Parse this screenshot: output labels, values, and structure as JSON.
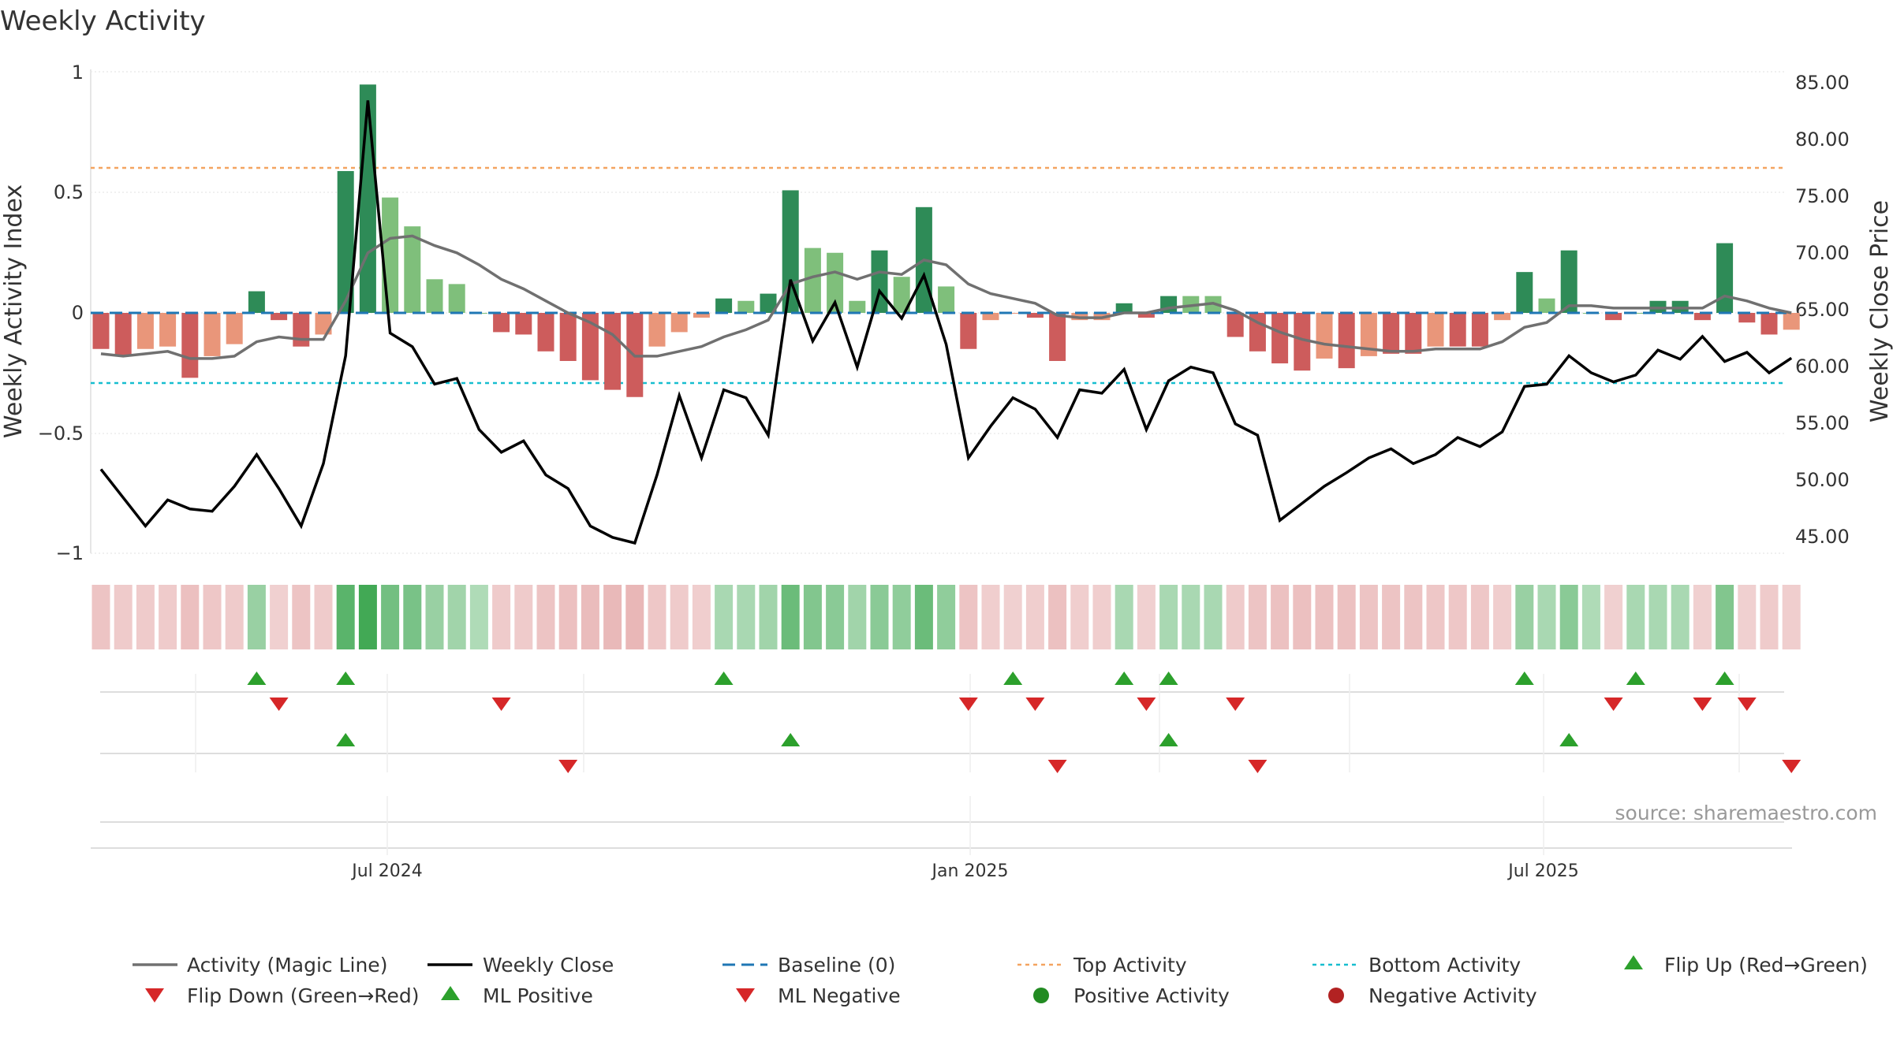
{
  "chart_data": {
    "type": "bar",
    "title": "Weekly Activity",
    "ylabel": "Weekly Activity Index",
    "y2label": "Weekly Close Price",
    "ylim": [
      -1,
      1
    ],
    "y2lim": [
      43,
      86
    ],
    "yticks": [
      "1",
      "0.5",
      "0",
      "−0.5",
      "−1"
    ],
    "y2ticks": [
      "85.00",
      "80.00",
      "75.00",
      "70.00",
      "65.00",
      "60.00",
      "55.00",
      "50.00",
      "45.00"
    ],
    "xticks": [
      "Jul 2024",
      "Jan 2025",
      "Jul 2025"
    ],
    "source": "source: sharemaestro.com",
    "top_activity": 0.6,
    "bottom_activity": -0.29,
    "baseline": 0,
    "activity": [
      -0.15,
      -0.18,
      -0.15,
      -0.14,
      -0.27,
      -0.18,
      -0.13,
      0.09,
      -0.03,
      -0.14,
      -0.09,
      0.59,
      0.95,
      0.48,
      0.36,
      0.14,
      0.12,
      0,
      -0.08,
      -0.09,
      -0.16,
      -0.2,
      -0.28,
      -0.32,
      -0.35,
      -0.14,
      -0.08,
      -0.02,
      0.06,
      0.05,
      0.08,
      0.51,
      0.27,
      0.25,
      0.05,
      0.26,
      0.15,
      0.44,
      0.11,
      -0.15,
      -0.03,
      0,
      -0.02,
      -0.2,
      -0.03,
      -0.03,
      0.04,
      -0.02,
      0.07,
      0.07,
      0.07,
      -0.1,
      -0.16,
      -0.21,
      -0.24,
      -0.19,
      -0.23,
      -0.18,
      -0.17,
      -0.17,
      -0.14,
      -0.14,
      -0.14,
      -0.03,
      0.17,
      0.06,
      0.26,
      0,
      -0.03,
      0,
      0.05,
      0.05,
      -0.03,
      0.29,
      -0.04,
      -0.09,
      -0.07
    ],
    "activity_color_classes": [
      "strong-red",
      "strong-red",
      "light-red",
      "light-red",
      "strong-red",
      "light-red",
      "light-red",
      "strong-green",
      "strong-red",
      "strong-red",
      "light-red",
      "strong-green",
      "strong-green",
      "light-green",
      "light-green",
      "light-green",
      "light-green",
      "light-green",
      "strong-red",
      "strong-red",
      "strong-red",
      "strong-red",
      "strong-red",
      "strong-red",
      "strong-red",
      "light-red",
      "light-red",
      "light-red",
      "strong-green",
      "light-green",
      "strong-green",
      "strong-green",
      "light-green",
      "light-green",
      "light-green",
      "strong-green",
      "light-green",
      "strong-green",
      "light-green",
      "strong-red",
      "light-red",
      "light-red",
      "strong-red",
      "strong-red",
      "light-red",
      "light-red",
      "strong-green",
      "strong-red",
      "strong-green",
      "light-green",
      "light-green",
      "strong-red",
      "strong-red",
      "strong-red",
      "strong-red",
      "light-red",
      "strong-red",
      "light-red",
      "strong-red",
      "strong-red",
      "light-red",
      "strong-red",
      "strong-red",
      "light-red",
      "strong-green",
      "light-green",
      "strong-green",
      "light-green",
      "strong-red",
      "light-green",
      "strong-green",
      "strong-green",
      "strong-red",
      "strong-green",
      "strong-red",
      "strong-red",
      "light-red"
    ],
    "magic_line": [
      -0.17,
      -0.18,
      -0.17,
      -0.16,
      -0.19,
      -0.19,
      -0.18,
      -0.12,
      -0.1,
      -0.11,
      -0.11,
      0.05,
      0.25,
      0.31,
      0.32,
      0.28,
      0.25,
      0.2,
      0.14,
      0.1,
      0.05,
      0,
      -0.04,
      -0.09,
      -0.18,
      -0.18,
      -0.16,
      -0.14,
      -0.1,
      -0.07,
      -0.03,
      0.12,
      0.15,
      0.17,
      0.14,
      0.17,
      0.16,
      0.22,
      0.2,
      0.12,
      0.08,
      0.06,
      0.04,
      -0.01,
      -0.02,
      -0.02,
      0,
      0,
      0.02,
      0.03,
      0.04,
      0.01,
      -0.04,
      -0.08,
      -0.11,
      -0.13,
      -0.14,
      -0.15,
      -0.16,
      -0.16,
      -0.15,
      -0.15,
      -0.15,
      -0.12,
      -0.06,
      -0.04,
      0.03,
      0.03,
      0.02,
      0.02,
      0.02,
      0.02,
      0.02,
      0.07,
      0.05,
      0.02,
      0
    ],
    "weekly_close": [
      51.5,
      49,
      46.5,
      48.8,
      48,
      47.8,
      50,
      52.8,
      49.8,
      46.5,
      52,
      61.5,
      84,
      63.5,
      62.3,
      59,
      59.5,
      55,
      53,
      54,
      51,
      49.8,
      46.5,
      45.5,
      45,
      51,
      58,
      52.5,
      58.5,
      57.8,
      54.5,
      68.2,
      62.8,
      66.2,
      60.5,
      67.2,
      64.8,
      68.6,
      62.5,
      52.5,
      55.3,
      57.8,
      56.8,
      54.3,
      58.5,
      58.2,
      60.3,
      55,
      59.3,
      60.5,
      60,
      55.5,
      54.5,
      47,
      48.5,
      50,
      51.2,
      52.5,
      53.3,
      52,
      52.8,
      54.3,
      53.5,
      54.8,
      58.8,
      59,
      61.5,
      60,
      59.2,
      59.8,
      62,
      61.2,
      63.2,
      61,
      61.8,
      60,
      61.3
    ],
    "intensity": [
      -0.45,
      -0.35,
      -0.35,
      -0.35,
      -0.55,
      -0.4,
      -0.35,
      0.45,
      -0.25,
      -0.45,
      -0.35,
      0.85,
      1,
      0.7,
      0.65,
      0.45,
      0.4,
      0.3,
      -0.35,
      -0.35,
      -0.45,
      -0.55,
      -0.6,
      -0.65,
      -0.7,
      -0.4,
      -0.35,
      -0.3,
      0.35,
      0.35,
      0.4,
      0.75,
      0.6,
      0.55,
      0.4,
      0.55,
      0.5,
      0.75,
      0.5,
      -0.45,
      -0.3,
      -0.25,
      -0.3,
      -0.5,
      -0.3,
      -0.3,
      0.35,
      -0.25,
      0.35,
      0.35,
      0.35,
      -0.35,
      -0.45,
      -0.5,
      -0.55,
      -0.5,
      -0.5,
      -0.45,
      -0.45,
      -0.45,
      -0.4,
      -0.4,
      -0.4,
      -0.3,
      0.45,
      0.35,
      0.55,
      0.3,
      -0.25,
      0.35,
      0.35,
      0.35,
      -0.25,
      0.6,
      -0.25,
      -0.35,
      -0.3
    ],
    "flip_up_weeks": [
      7,
      11,
      28,
      41,
      46,
      48,
      64,
      69,
      73
    ],
    "flip_down_weeks": [
      8,
      18,
      39,
      42,
      47,
      51,
      68,
      72,
      74
    ],
    "ml_positive_weeks": [
      11,
      31,
      48,
      66
    ],
    "ml_negative_weeks": [
      21,
      43,
      52,
      76
    ],
    "legend": [
      "Activity (Magic Line)",
      "Weekly Close",
      "Baseline (0)",
      "Top Activity",
      "Bottom Activity",
      "Flip Up (Red→Green)",
      "Flip Down (Green→Red)",
      "ML Positive",
      "ML Negative",
      "Positive Activity",
      "Negative Activity"
    ]
  },
  "colors": {
    "strong_green": "#2e8b57",
    "light_green": "#7fbf7b",
    "strong_red": "#cd5c5c",
    "light_red": "#e9967a",
    "magic_line": "#707070",
    "weekly_close": "#000000",
    "baseline": "#1f77b4",
    "top_activity": "#f4a460",
    "bottom_activity": "#17becf",
    "flip_up": "#2ca02c",
    "flip_down": "#d62728",
    "positive_activity": "#228b22",
    "negative_activity": "#b22222"
  }
}
